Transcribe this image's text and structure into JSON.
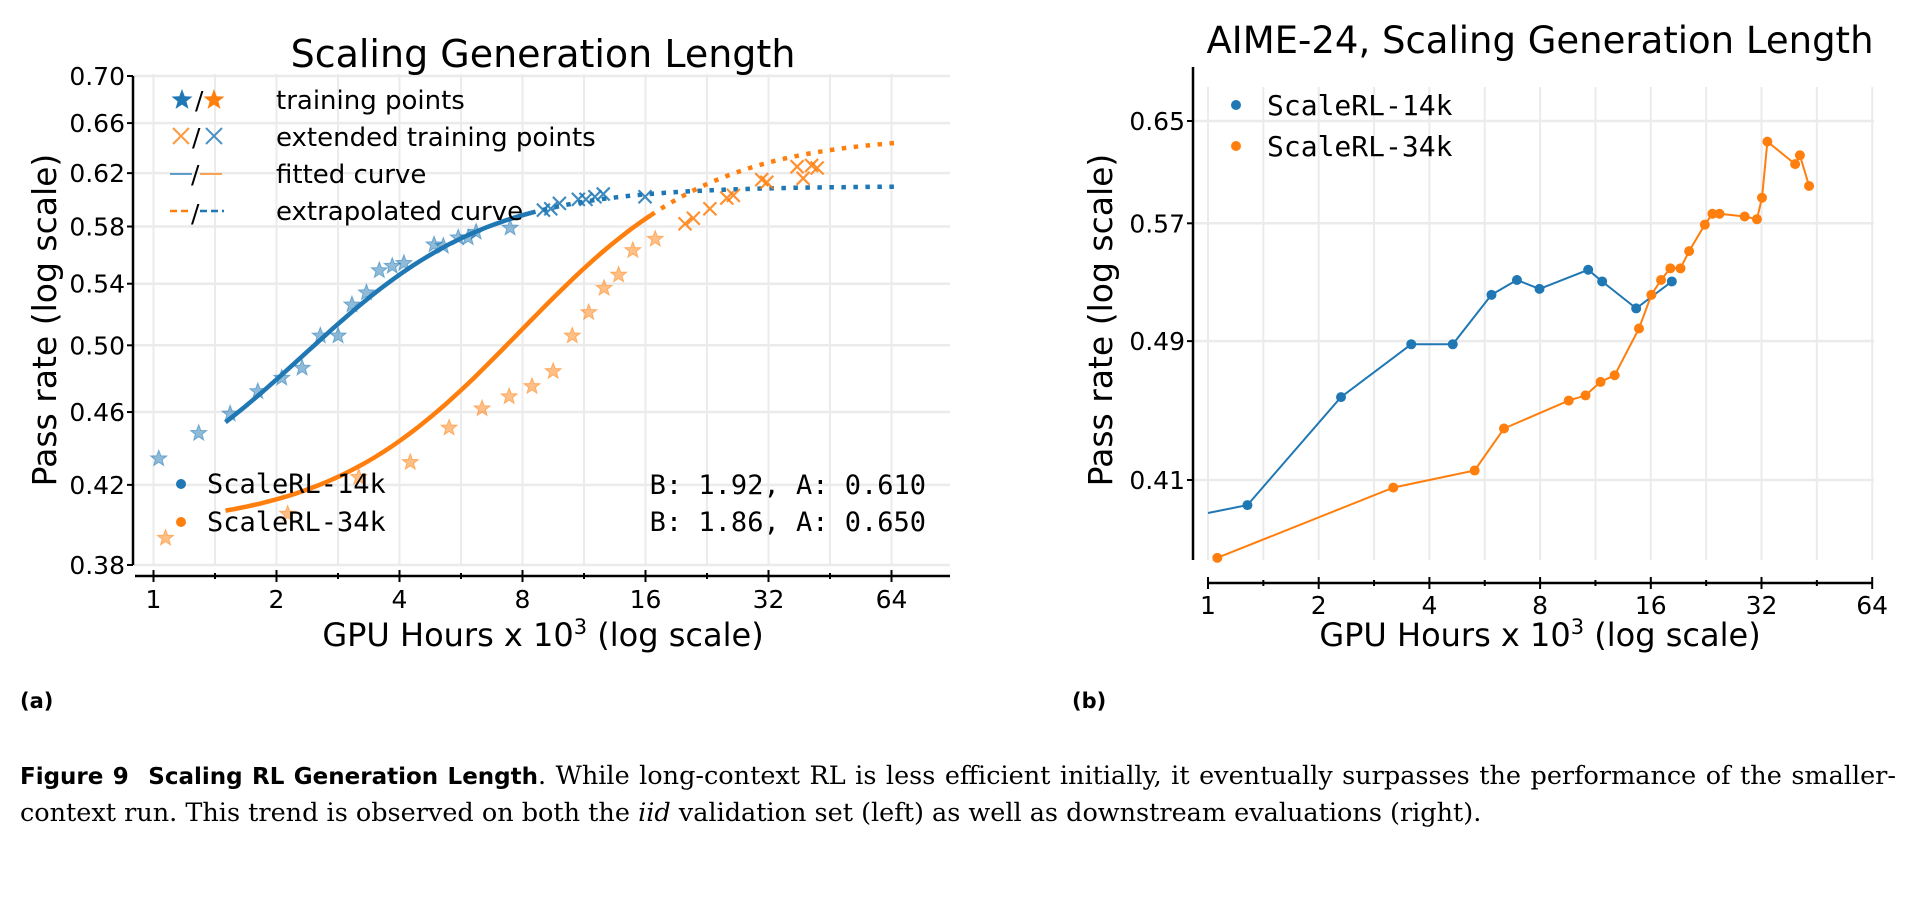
{
  "figure": {
    "panel_a_label": "(a)",
    "panel_b_label": "(b)",
    "caption": {
      "figure_number": "Figure 9",
      "title": "Scaling RL Generation Length",
      "text_1": ".  While long-context RL is less efficient initially, it eventually surpasses the performance of the smaller-context run.  This trend is observed on both the ",
      "text_italic": "iid",
      "text_2": " validation set (left) as well as downstream evaluations (right)."
    }
  },
  "colors": {
    "blue": "#1f77b4",
    "orange": "#ff7f0e",
    "grid": "#ebebeb"
  },
  "chart_data": [
    {
      "type": "scatter",
      "title": "Scaling Generation Length",
      "xlabel": "GPU Hours x 10^3 (log scale)",
      "ylabel": "Pass rate (log scale)",
      "xscale": "log2",
      "yscale": "log",
      "xlim": [
        0.93,
        87
      ],
      "ylim": [
        0.38,
        0.7
      ],
      "xticks": [
        1,
        2,
        4,
        8,
        16,
        32,
        64
      ],
      "xtick_labels": [
        "1",
        "2",
        "4",
        "8",
        "16",
        "32",
        "64"
      ],
      "yticks": [
        0.38,
        0.42,
        0.46,
        0.5,
        0.54,
        0.58,
        0.62,
        0.66,
        0.7
      ],
      "ytick_labels": [
        "0.38",
        "0.42",
        "0.46",
        "0.50",
        "0.54",
        "0.58",
        "0.62",
        "0.66",
        "0.70"
      ],
      "grid": true,
      "legend_markers": {
        "position": "top-left",
        "entries": [
          {
            "symbols": "★/★",
            "label": "training points"
          },
          {
            "symbols": "×/×",
            "label": "extended training points"
          },
          {
            "symbols": "—/—",
            "label": "fitted curve"
          },
          {
            "symbols": "--/--",
            "label": "extrapolated curve"
          }
        ]
      },
      "legend_series": {
        "position": "bottom-left",
        "entries": [
          {
            "label": "ScaleRL-14k",
            "color": "blue"
          },
          {
            "label": "ScaleRL-34k",
            "color": "orange"
          }
        ]
      },
      "annotations": [
        {
          "text": "B: 1.92, A: 0.610",
          "series": "ScaleRL-14k"
        },
        {
          "text": "B: 1.86, A: 0.650",
          "series": "ScaleRL-34k"
        }
      ],
      "series": [
        {
          "name": "ScaleRL-14k",
          "color": "blue",
          "fit": {
            "B": 1.92,
            "A": 0.61,
            "fit_start": 1.5,
            "fit_end": 8.4,
            "extrap_end": 66
          },
          "training_points": [
            [
              1.03,
              0.434
            ],
            [
              1.29,
              0.448
            ],
            [
              1.54,
              0.459
            ],
            [
              1.8,
              0.472
            ],
            [
              2.06,
              0.48
            ],
            [
              2.31,
              0.486
            ],
            [
              2.56,
              0.506
            ],
            [
              2.83,
              0.506
            ],
            [
              3.06,
              0.526
            ],
            [
              3.32,
              0.534
            ],
            [
              3.57,
              0.549
            ],
            [
              3.84,
              0.552
            ],
            [
              4.1,
              0.554
            ],
            [
              4.86,
              0.567
            ],
            [
              5.12,
              0.566
            ],
            [
              5.57,
              0.572
            ],
            [
              5.89,
              0.572
            ],
            [
              6.16,
              0.576
            ],
            [
              7.46,
              0.579
            ]
          ],
          "extended_points": [
            [
              9.0,
              0.592
            ],
            [
              9.38,
              0.593
            ],
            [
              9.85,
              0.597
            ],
            [
              10.96,
              0.6
            ],
            [
              11.44,
              0.6
            ],
            [
              12.03,
              0.602
            ],
            [
              12.61,
              0.604
            ],
            [
              15.96,
              0.602
            ]
          ]
        },
        {
          "name": "ScaleRL-34k",
          "color": "orange",
          "fit": {
            "B": 1.86,
            "A": 0.65,
            "fit_start": 1.5,
            "fit_end": 16.5,
            "extrap_end": 66
          },
          "training_points": [
            [
              1.07,
              0.393
            ],
            [
              2.13,
              0.405
            ],
            [
              3.18,
              0.424
            ],
            [
              4.25,
              0.432
            ],
            [
              5.29,
              0.451
            ],
            [
              6.37,
              0.462
            ],
            [
              7.42,
              0.469
            ],
            [
              8.44,
              0.475
            ],
            [
              9.51,
              0.484
            ],
            [
              10.59,
              0.506
            ],
            [
              11.62,
              0.521
            ],
            [
              12.67,
              0.537
            ],
            [
              13.75,
              0.546
            ],
            [
              14.9,
              0.563
            ],
            [
              16.9,
              0.571
            ]
          ],
          "extended_points": [
            [
              19.99,
              0.582
            ],
            [
              20.95,
              0.586
            ],
            [
              23.0,
              0.593
            ],
            [
              25.3,
              0.601
            ],
            [
              26.25,
              0.603
            ],
            [
              30.8,
              0.615
            ],
            [
              31.7,
              0.613
            ],
            [
              37.6,
              0.625
            ],
            [
              38.9,
              0.616
            ],
            [
              40.8,
              0.626
            ],
            [
              42.1,
              0.624
            ]
          ]
        }
      ]
    },
    {
      "type": "line",
      "title": "AIME-24, Scaling Generation Length",
      "xlabel": "GPU Hours x 10^3 (log scale)",
      "ylabel": "Pass rate (log scale)",
      "xscale": "log2",
      "yscale": "log",
      "xlim": [
        1,
        64
      ],
      "ylim": [
        0.368,
        0.695
      ],
      "xticks": [
        1,
        2,
        4,
        8,
        16,
        32,
        64
      ],
      "xtick_labels": [
        "1",
        "2",
        "4",
        "8",
        "16",
        "32",
        "64"
      ],
      "yticks": [
        0.41,
        0.49,
        0.57,
        0.65
      ],
      "ytick_labels": [
        "0.41",
        "0.49",
        "0.57",
        "0.65"
      ],
      "grid": true,
      "legend": {
        "position": "top-left",
        "entries": [
          "ScaleRL-14k",
          "ScaleRL-34k"
        ]
      },
      "series": [
        {
          "name": "ScaleRL-14k",
          "color": "blue",
          "line_start": [
            1.0,
            0.393
          ],
          "points": [
            [
              1.28,
              0.397
            ],
            [
              2.3,
              0.456
            ],
            [
              3.57,
              0.488
            ],
            [
              4.63,
              0.488
            ],
            [
              5.9,
              0.52
            ],
            [
              6.92,
              0.53
            ],
            [
              7.97,
              0.524
            ],
            [
              10.81,
              0.537
            ],
            [
              11.8,
              0.529
            ],
            [
              14.6,
              0.511
            ],
            [
              18.25,
              0.529
            ]
          ]
        },
        {
          "name": "ScaleRL-34k",
          "color": "orange",
          "points": [
            [
              1.06,
              0.371
            ],
            [
              3.19,
              0.406
            ],
            [
              5.31,
              0.415
            ],
            [
              6.38,
              0.438
            ],
            [
              9.57,
              0.454
            ],
            [
              10.63,
              0.457
            ],
            [
              11.68,
              0.465
            ],
            [
              12.76,
              0.469
            ],
            [
              14.86,
              0.498
            ],
            [
              16.06,
              0.52
            ],
            [
              17.06,
              0.53
            ],
            [
              18.08,
              0.538
            ],
            [
              19.27,
              0.538
            ],
            [
              20.34,
              0.55
            ],
            [
              22.44,
              0.569
            ],
            [
              23.53,
              0.577
            ],
            [
              24.6,
              0.577
            ],
            [
              28.8,
              0.575
            ],
            [
              31.1,
              0.573
            ],
            [
              32.1,
              0.589
            ],
            [
              33.2,
              0.633
            ],
            [
              39.5,
              0.615
            ],
            [
              40.7,
              0.622
            ],
            [
              43.1,
              0.598
            ]
          ]
        }
      ]
    }
  ]
}
